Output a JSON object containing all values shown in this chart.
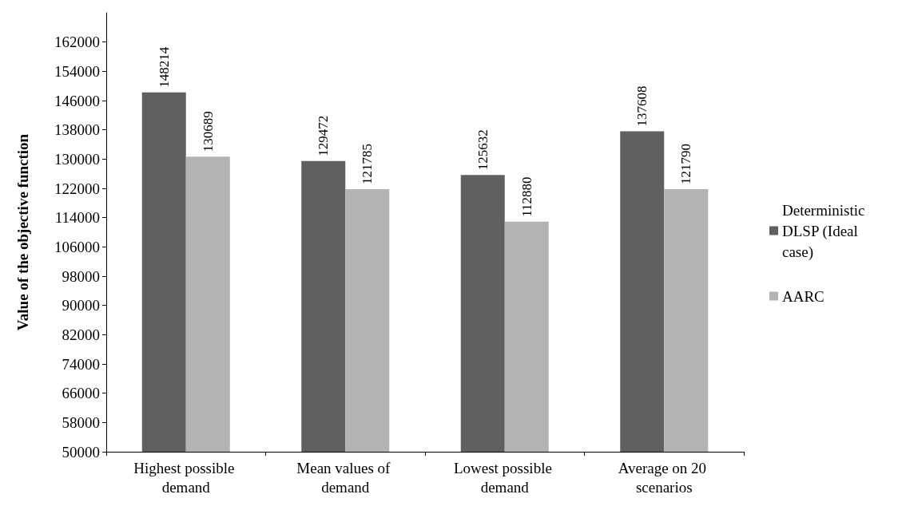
{
  "chart_data": {
    "type": "bar",
    "ylabel": "Value of the objective function",
    "categories": [
      "Highest possible demand",
      "Mean values of demand",
      "Lowest possible demand",
      "Average on 20 scenarios"
    ],
    "series": [
      {
        "name": "Deterministic DLSP (Ideal case)",
        "color": "#606060",
        "values": [
          148214,
          129472,
          125632,
          137608
        ]
      },
      {
        "name": "AARC",
        "color": "#b3b3b3",
        "values": [
          130689,
          121785,
          112880,
          121790
        ]
      }
    ],
    "ylim": [
      50000,
      170000
    ],
    "yticks": [
      50000,
      58000,
      66000,
      74000,
      82000,
      90000,
      98000,
      106000,
      114000,
      122000,
      130000,
      138000,
      146000,
      154000,
      162000
    ],
    "grid": false,
    "legend": "right",
    "data_labels": true
  }
}
